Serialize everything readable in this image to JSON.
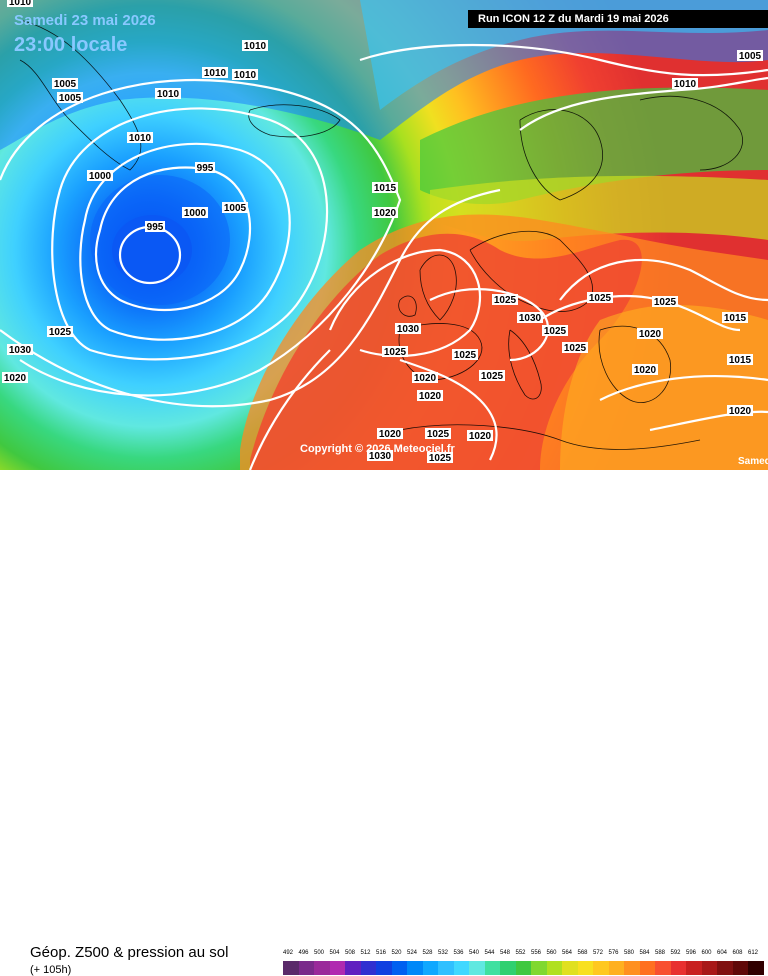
{
  "header": {
    "date_label": "Samedi 23 mai 2026",
    "time_label": "23:00 locale",
    "run_label": "Run ICON 12 Z du Mardi 19 mai 2026"
  },
  "map": {
    "copyright": "Copyright © 2026 Meteociel.fr",
    "corner_text": "Samedi",
    "isobar_labels": [
      "1010",
      "1010",
      "1010",
      "1005",
      "1005",
      "1010",
      "1010",
      "1010",
      "1000",
      "995",
      "1000",
      "1005",
      "995",
      "1015",
      "1020",
      "1025",
      "1025",
      "1030",
      "1025",
      "1025",
      "1030",
      "1025",
      "1025",
      "1025",
      "1020",
      "1020",
      "1020",
      "1030",
      "1025",
      "1025",
      "1020",
      "1015",
      "1015",
      "1020",
      "1030",
      "1025",
      "1005",
      "1010",
      "1020",
      "1025",
      "1020",
      "1020"
    ]
  },
  "footer": {
    "title": "Géop. Z500 & pression au sol",
    "subtitle": "(+ 105h)"
  },
  "legend": {
    "labels": [
      "492",
      "496",
      "500",
      "504",
      "508",
      "512",
      "516",
      "520",
      "524",
      "528",
      "532",
      "536",
      "540",
      "544",
      "548",
      "552",
      "556",
      "560",
      "564",
      "568",
      "572",
      "576",
      "580",
      "584",
      "588",
      "592",
      "596",
      "600",
      "604",
      "608",
      "612"
    ],
    "colors": [
      "#5a2a6a",
      "#7a2a8a",
      "#9a2a9a",
      "#b02ab0",
      "#6020c0",
      "#3030d0",
      "#1040e0",
      "#0060f0",
      "#0088f8",
      "#10a8ff",
      "#30c0ff",
      "#40d8ff",
      "#60e8e0",
      "#40e0a0",
      "#30d070",
      "#40c840",
      "#80d830",
      "#b0e020",
      "#e0e020",
      "#f8e020",
      "#ffc820",
      "#ffb020",
      "#ff9020",
      "#ff7020",
      "#f85030",
      "#e83030",
      "#c82020",
      "#a81818",
      "#801010",
      "#600808",
      "#300000"
    ]
  }
}
